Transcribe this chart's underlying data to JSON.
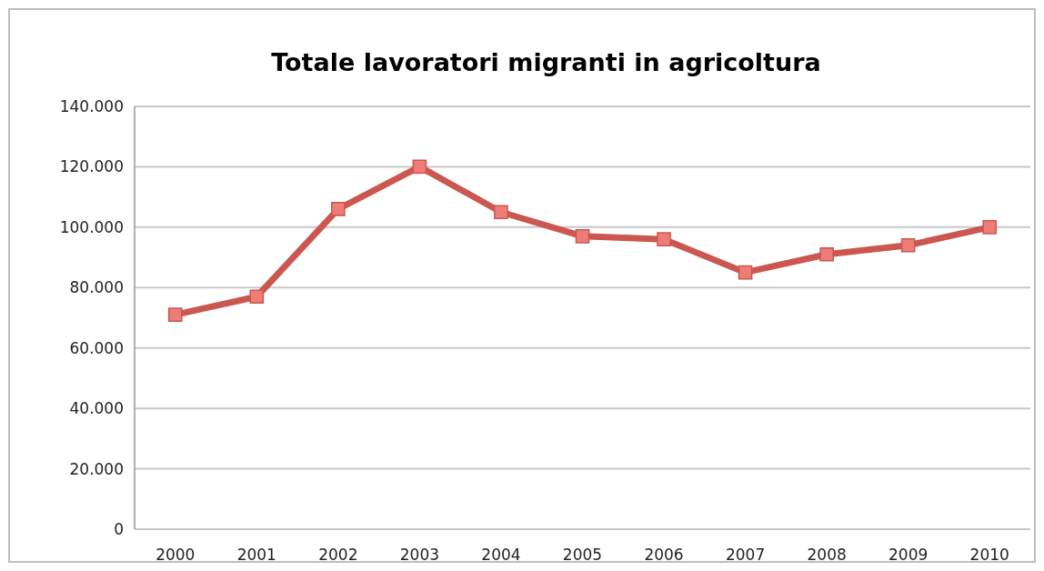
{
  "chart_data": {
    "type": "line",
    "title": "Totale lavoratori migranti in agricoltura",
    "categories": [
      "2000",
      "2001",
      "2002",
      "2003",
      "2004",
      "2005",
      "2006",
      "2007",
      "2008",
      "2009",
      "2010"
    ],
    "values": [
      71000,
      77000,
      106000,
      120000,
      105000,
      97000,
      96000,
      85000,
      91000,
      94000,
      100000
    ],
    "color": "#cc5650",
    "marker": "square",
    "grid": "y",
    "ylim": [
      0,
      140000
    ],
    "yticks": [
      0,
      {
        "value": 20000,
        "label": "20.000"
      },
      {
        "value": 40000,
        "label": "40.000"
      },
      {
        "value": 60000,
        "label": "60.000"
      },
      {
        "value": 80000,
        "label": "80.000"
      },
      {
        "value": 100000,
        "label": "100.000"
      },
      {
        "value": 120000,
        "label": "120.000"
      },
      {
        "value": 140000,
        "label": "140.000"
      }
    ]
  }
}
